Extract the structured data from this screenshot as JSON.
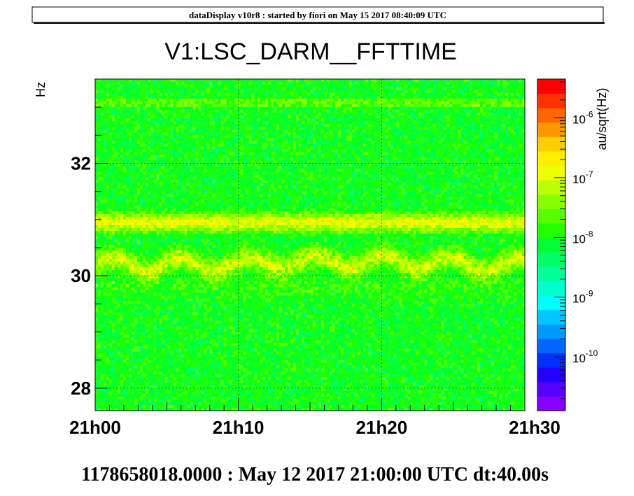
{
  "header": {
    "text": "dataDisplay v10r8 : started by fiori on May 15 2017 08:40:09 UTC"
  },
  "title": "V1:LSC_DARM__FFTTIME",
  "footer": {
    "text": "1178658018.0000 : May 12 2017 21:00:00 UTC dt:40.00s"
  },
  "chart_data": {
    "type": "heatmap",
    "title": "V1:LSC_DARM__FFTTIME",
    "xlabel": "",
    "ylabel": "Hz",
    "x_tick_labels": [
      "21h00",
      "21h10",
      "21h20",
      "21h30"
    ],
    "y_tick_labels": [
      "28",
      "30",
      "32"
    ],
    "y_ticks": [
      28,
      30,
      32
    ],
    "ylim": [
      27.6,
      33.5
    ],
    "xlim_minutes": [
      0,
      30
    ],
    "dt_seconds": 40,
    "grid": true,
    "colorbar": {
      "label": "au/sqrt(Hz)",
      "scale": "log",
      "tick_labels": [
        "10-10",
        "10-9",
        "10-8",
        "10-7",
        "10-6"
      ],
      "tick_values": [
        1e-10,
        1e-09,
        1e-08,
        1e-07,
        1e-06
      ],
      "colors": [
        "#8800ff",
        "#5500ff",
        "#2200ff",
        "#0030ff",
        "#0066ff",
        "#0099ff",
        "#00c8ff",
        "#00ffff",
        "#00ffcc",
        "#00ff99",
        "#00ff66",
        "#00ff33",
        "#22ff00",
        "#55ff00",
        "#88ff00",
        "#bbff00",
        "#eeff00",
        "#ffee00",
        "#ffcc00",
        "#ff9900",
        "#ff6600",
        "#ff3300",
        "#ff0000"
      ]
    },
    "features": [
      {
        "label": "band",
        "freq_hz": 30.95,
        "level": "~1e-7 to 3e-7"
      },
      {
        "label": "band",
        "freq_hz": 30.2,
        "level": "~1e-7 to 3e-7",
        "wandering": true
      },
      {
        "label": "background",
        "level": "~1e-8 to 3e-8"
      }
    ]
  }
}
